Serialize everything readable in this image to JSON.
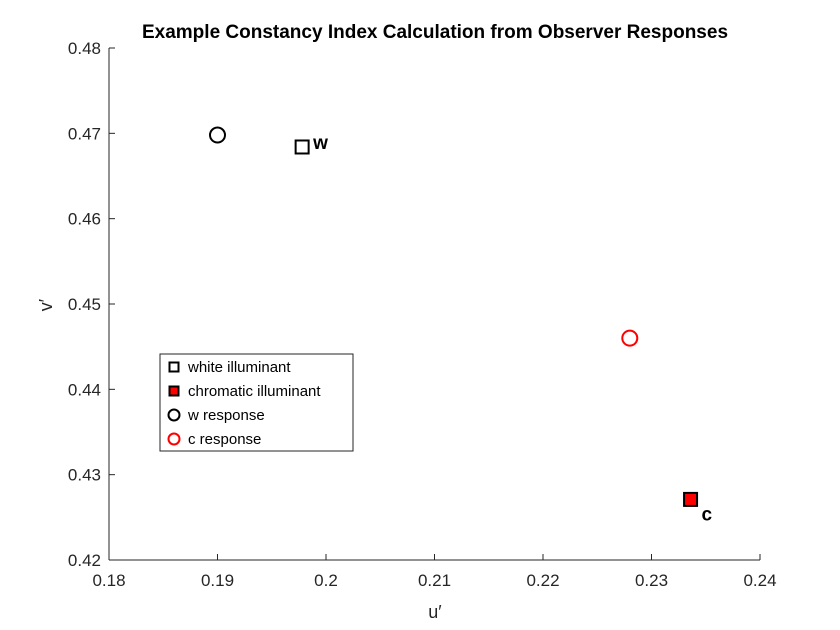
{
  "chart_data": {
    "type": "scatter",
    "title": "Example Constancy Index Calculation from Observer Responses",
    "xlabel": "u′",
    "ylabel": "v′",
    "xlim": [
      0.18,
      0.24
    ],
    "ylim": [
      0.42,
      0.48
    ],
    "xticks": [
      0.18,
      0.19,
      0.2,
      0.21,
      0.22,
      0.23,
      0.24
    ],
    "yticks": [
      0.42,
      0.43,
      0.44,
      0.45,
      0.46,
      0.47,
      0.48
    ],
    "xtick_labels": [
      "0.18",
      "0.19",
      "0.2",
      "0.21",
      "0.22",
      "0.23",
      "0.24"
    ],
    "ytick_labels": [
      "0.42",
      "0.43",
      "0.44",
      "0.45",
      "0.46",
      "0.47",
      "0.48"
    ],
    "grid": false,
    "legend_position": "middle-left",
    "series": [
      {
        "name": "white illuminant",
        "marker": "square",
        "edge_color": "#000000",
        "fill_color": "#ffffff",
        "points": [
          {
            "x": 0.1978,
            "y": 0.4684
          }
        ]
      },
      {
        "name": "chromatic illuminant",
        "marker": "square",
        "edge_color": "#000000",
        "fill_color": "#ff0000",
        "points": [
          {
            "x": 0.2336,
            "y": 0.4271
          }
        ]
      },
      {
        "name": "w response",
        "marker": "circle",
        "edge_color": "#000000",
        "fill_color": "none",
        "points": [
          {
            "x": 0.19,
            "y": 0.4698
          }
        ]
      },
      {
        "name": "c response",
        "marker": "circle",
        "edge_color": "#ff0000",
        "fill_color": "none",
        "points": [
          {
            "x": 0.228,
            "y": 0.446
          }
        ]
      }
    ],
    "annotations": [
      {
        "text": "w",
        "x": 0.1978,
        "y": 0.4684
      },
      {
        "text": "c",
        "x": 0.2336,
        "y": 0.4271
      }
    ]
  }
}
